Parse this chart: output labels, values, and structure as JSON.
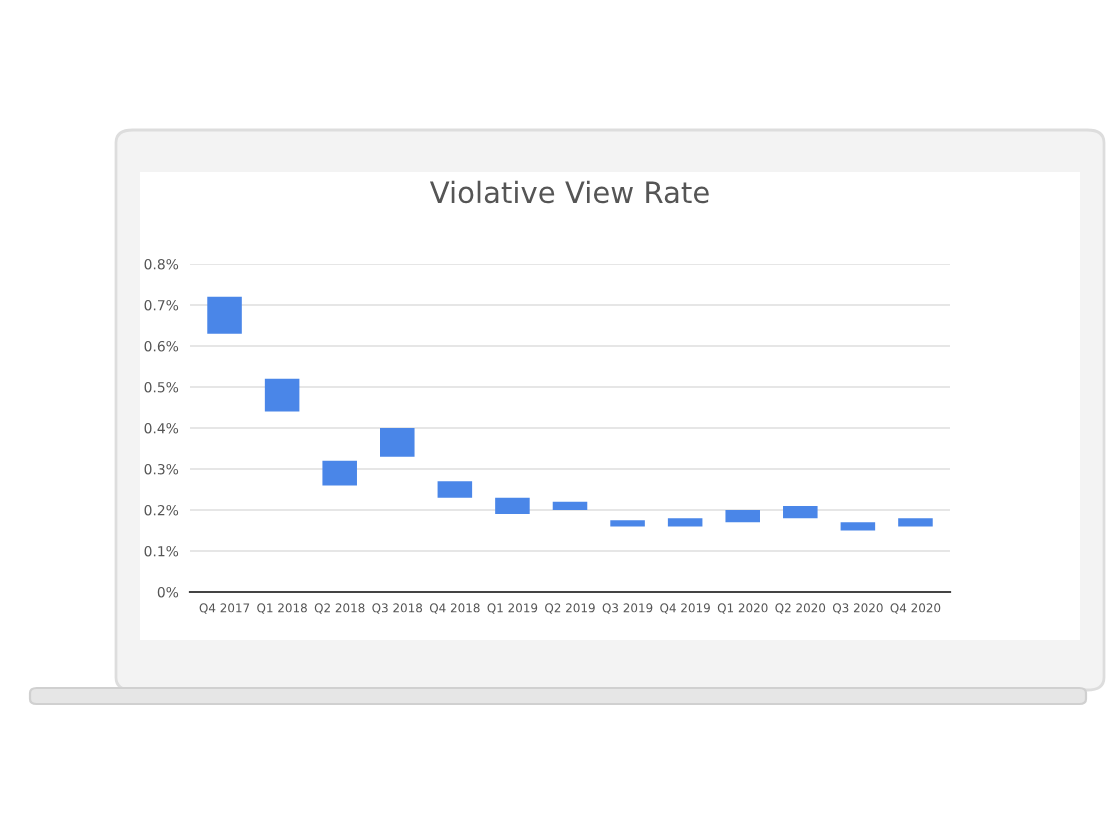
{
  "chart_data": {
    "type": "bar",
    "title": "Violative View Rate",
    "categories": [
      "Q4 2017",
      "Q1 2018",
      "Q2 2018",
      "Q3 2018",
      "Q4 2018",
      "Q1 2019",
      "Q2 2019",
      "Q3 2019",
      "Q4 2019",
      "Q1 2020",
      "Q2 2020",
      "Q3 2020",
      "Q4 2020"
    ],
    "base": [
      0.63,
      0.44,
      0.26,
      0.33,
      0.23,
      0.19,
      0.2,
      0.16,
      0.16,
      0.17,
      0.18,
      0.15,
      0.16
    ],
    "values": [
      0.09,
      0.08,
      0.06,
      0.07,
      0.04,
      0.04,
      0.02,
      0.015,
      0.02,
      0.03,
      0.03,
      0.02,
      0.02
    ],
    "color": "#4a86e8",
    "ylim": [
      0,
      0.8
    ],
    "yticks": [
      {
        "value": 0,
        "label": "0%"
      },
      {
        "value": 0.1,
        "label": "0.1%"
      },
      {
        "value": 0.2,
        "label": "0.2%"
      },
      {
        "value": 0.3,
        "label": "0.3%"
      },
      {
        "value": 0.4,
        "label": "0.4%"
      },
      {
        "value": 0.5,
        "label": "0.5%"
      },
      {
        "value": 0.6,
        "label": "0.6%"
      },
      {
        "value": 0.7,
        "label": "0.7%"
      },
      {
        "value": 0.8,
        "label": "0.8%"
      }
    ],
    "grid": "y"
  }
}
